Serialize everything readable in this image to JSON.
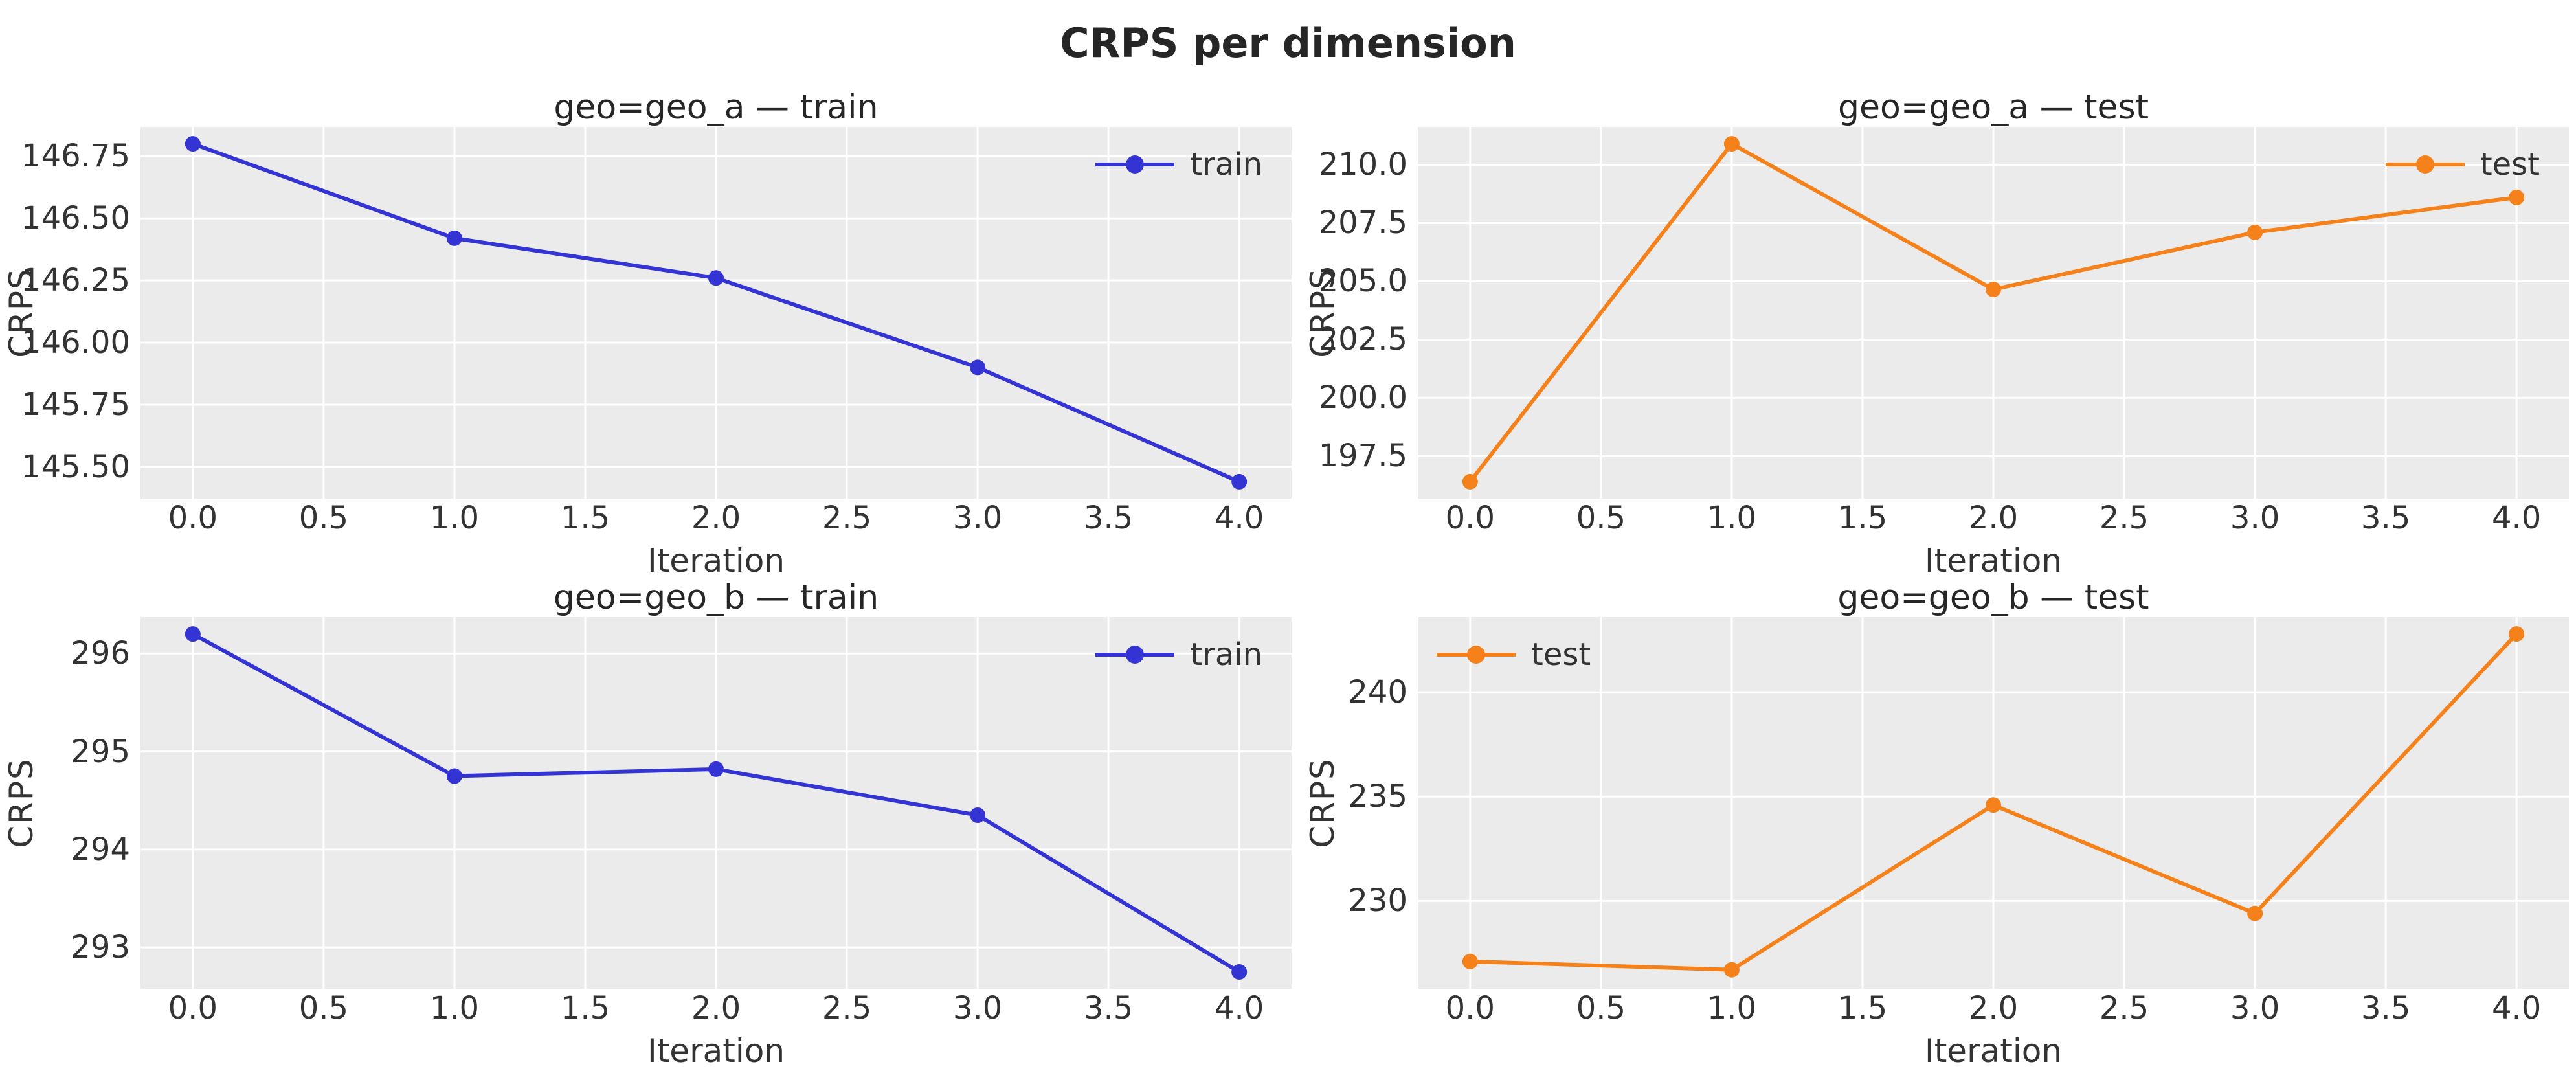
{
  "figure": {
    "title": "CRPS per dimension"
  },
  "colors": {
    "train": "#3434d4",
    "test": "#f5811b",
    "plot_background": "#ebebeb",
    "gridline": "#ffffff",
    "text": "#333333",
    "title_text": "#262626"
  },
  "chart_data": [
    {
      "type": "line",
      "title": "geo=geo_a — train",
      "xlabel": "Iteration",
      "ylabel": "CRPS",
      "x": [
        0,
        1,
        2,
        3,
        4
      ],
      "series": [
        {
          "name": "train",
          "color": "#3434d4",
          "values": [
            146.8,
            146.42,
            146.26,
            145.9,
            145.44
          ]
        }
      ],
      "xlim": [
        -0.2,
        4.2
      ],
      "ylim": [
        145.372,
        146.868
      ],
      "xticks": [
        0,
        0.5,
        1,
        1.5,
        2,
        2.5,
        3,
        3.5,
        4
      ],
      "xtick_labels": [
        "0.0",
        "0.5",
        "1.0",
        "1.5",
        "2.0",
        "2.5",
        "3.0",
        "3.5",
        "4.0"
      ],
      "yticks": [
        145.5,
        145.75,
        146.0,
        146.25,
        146.5,
        146.75
      ],
      "ytick_labels": [
        "145.50",
        "145.75",
        "146.00",
        "146.25",
        "146.50",
        "146.75"
      ],
      "grid": true,
      "legend": {
        "label": "train",
        "position": "top-right"
      }
    },
    {
      "type": "line",
      "title": "geo=geo_a — test",
      "xlabel": "Iteration",
      "ylabel": "CRPS",
      "x": [
        0,
        1,
        2,
        3,
        4
      ],
      "series": [
        {
          "name": "test",
          "color": "#f5811b",
          "values": [
            196.4,
            210.9,
            204.65,
            207.1,
            208.6
          ]
        }
      ],
      "xlim": [
        -0.2,
        4.2
      ],
      "ylim": [
        195.675,
        211.625
      ],
      "xticks": [
        0,
        0.5,
        1,
        1.5,
        2,
        2.5,
        3,
        3.5,
        4
      ],
      "xtick_labels": [
        "0.0",
        "0.5",
        "1.0",
        "1.5",
        "2.0",
        "2.5",
        "3.0",
        "3.5",
        "4.0"
      ],
      "yticks": [
        197.5,
        200.0,
        202.5,
        205.0,
        207.5,
        210.0
      ],
      "ytick_labels": [
        "197.5",
        "200.0",
        "202.5",
        "205.0",
        "207.5",
        "210.0"
      ],
      "grid": true,
      "legend": {
        "label": "test",
        "position": "top-right"
      }
    },
    {
      "type": "line",
      "title": "geo=geo_b — train",
      "xlabel": "Iteration",
      "ylabel": "CRPS",
      "x": [
        0,
        1,
        2,
        3,
        4
      ],
      "series": [
        {
          "name": "train",
          "color": "#3434d4",
          "values": [
            296.2,
            294.75,
            294.82,
            294.35,
            292.75
          ]
        }
      ],
      "xlim": [
        -0.2,
        4.2
      ],
      "ylim": [
        292.578,
        296.373
      ],
      "xticks": [
        0,
        0.5,
        1,
        1.5,
        2,
        2.5,
        3,
        3.5,
        4
      ],
      "xtick_labels": [
        "0.0",
        "0.5",
        "1.0",
        "1.5",
        "2.0",
        "2.5",
        "3.0",
        "3.5",
        "4.0"
      ],
      "yticks": [
        293,
        294,
        295,
        296
      ],
      "ytick_labels": [
        "293",
        "294",
        "295",
        "296"
      ],
      "grid": true,
      "legend": {
        "label": "train",
        "position": "top-right"
      }
    },
    {
      "type": "line",
      "title": "geo=geo_b — test",
      "xlabel": "Iteration",
      "ylabel": "CRPS",
      "x": [
        0,
        1,
        2,
        3,
        4
      ],
      "series": [
        {
          "name": "test",
          "color": "#f5811b",
          "values": [
            227.1,
            226.7,
            234.6,
            229.4,
            242.8
          ]
        }
      ],
      "xlim": [
        -0.2,
        4.2
      ],
      "ylim": [
        225.79,
        243.61
      ],
      "xticks": [
        0,
        0.5,
        1,
        1.5,
        2,
        2.5,
        3,
        3.5,
        4
      ],
      "xtick_labels": [
        "0.0",
        "0.5",
        "1.0",
        "1.5",
        "2.0",
        "2.5",
        "3.0",
        "3.5",
        "4.0"
      ],
      "yticks": [
        230,
        235,
        240
      ],
      "ytick_labels": [
        "230",
        "235",
        "240"
      ],
      "grid": true,
      "legend": {
        "label": "test",
        "position": "top-left"
      }
    }
  ]
}
